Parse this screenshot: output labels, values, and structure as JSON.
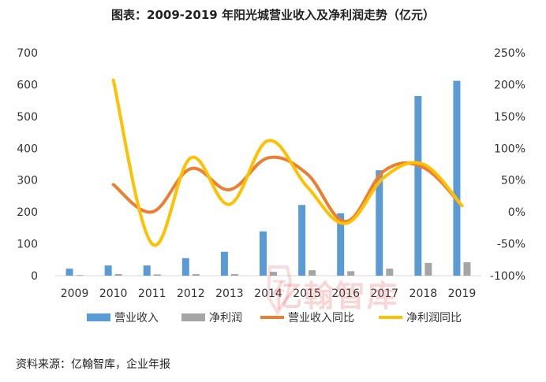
{
  "title": "图表：2009-2019 年阳光城营业收入及净利润走势（亿元）",
  "source": "资料来源：亿翰智库，企业年报",
  "watermark_text": "亿翰智库",
  "colors": {
    "revenue": "#5b9bd5",
    "net_profit": "#a5a5a5",
    "revenue_yoy": "#ed7d31",
    "net_profit_yoy": "#ffc000",
    "axis_text": "#333333",
    "watermark": "#e04a4a"
  },
  "chart_data": {
    "type": "bar",
    "title": "图表：2009-2019 年阳光城营业收入及净利润走势（亿元）",
    "categories": [
      "2009",
      "2010",
      "2011",
      "2012",
      "2013",
      "2014",
      "2015",
      "2016",
      "2017",
      "2018",
      "2019"
    ],
    "y_left": {
      "ylim": [
        0,
        700
      ],
      "ticks": [
        "0",
        "100",
        "200",
        "300",
        "400",
        "500",
        "600",
        "700"
      ]
    },
    "y_right": {
      "ylim": [
        -100,
        250
      ],
      "ticks": [
        "-100%",
        "-50%",
        "0%",
        "50%",
        "100%",
        "150%",
        "200%",
        "250%"
      ]
    },
    "series": [
      {
        "name": "营业收入",
        "type": "bar",
        "axis": "left",
        "values": [
          22,
          32,
          32,
          55,
          75,
          139,
          222,
          196,
          331,
          564,
          612
        ]
      },
      {
        "name": "净利润",
        "type": "bar",
        "axis": "left",
        "values": [
          2,
          5,
          4,
          5,
          5,
          12,
          17,
          14,
          22,
          40,
          42
        ]
      },
      {
        "name": "营业收入同比",
        "type": "line",
        "axis": "right",
        "values": [
          null,
          43,
          0,
          68,
          35,
          85,
          60,
          -15,
          65,
          70,
          10
        ]
      },
      {
        "name": "净利润同比",
        "type": "line",
        "axis": "right",
        "values": [
          null,
          207,
          -50,
          85,
          12,
          112,
          40,
          -18,
          55,
          75,
          10
        ]
      }
    ],
    "legend_position": "bottom",
    "grid": false
  }
}
